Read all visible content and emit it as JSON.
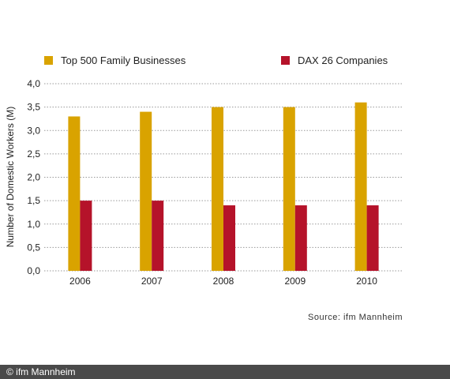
{
  "chart_data": {
    "type": "bar",
    "categories": [
      "2006",
      "2007",
      "2008",
      "2009",
      "2010"
    ],
    "series": [
      {
        "name": "Top 500 Family Businesses",
        "values": [
          3.3,
          3.4,
          3.5,
          3.5,
          3.6
        ],
        "color": "#d9a300"
      },
      {
        "name": "DAX 26 Companies",
        "values": [
          1.5,
          1.5,
          1.4,
          1.4,
          1.4
        ],
        "color": "#b5132a"
      }
    ],
    "ylabel": "Number of Domestic Workers (M)",
    "ylim": [
      0,
      4.0
    ],
    "yticks": [
      "0,0",
      "0,5",
      "1,0",
      "1,5",
      "2,0",
      "2,5",
      "3,0",
      "3,5",
      "4,0"
    ],
    "grid": true,
    "legend_position": "top"
  },
  "source_text": "Source: ifm Mannheim",
  "footer_text": "© ifm Mannheim"
}
